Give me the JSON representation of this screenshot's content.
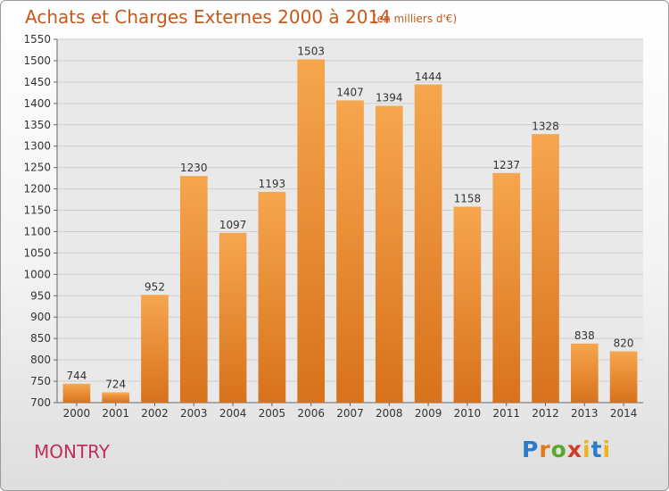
{
  "header": {
    "title": "Achats et Charges Externes 2000 à 2014",
    "unit": "(en milliers d'€)"
  },
  "footer": {
    "place": "MONTRY",
    "logo_letters": [
      "P",
      "r",
      "o",
      "x",
      "i",
      "t",
      "i"
    ]
  },
  "colors": {
    "bar_light": "#f6a64e",
    "bar_dark": "#d8721c",
    "title": "#c8581a",
    "place": "#c0305a"
  },
  "chart_data": {
    "type": "bar",
    "title": "Achats et Charges Externes 2000 à 2014",
    "subtitle": "(en milliers d'€)",
    "xlabel": "",
    "ylabel": "",
    "categories": [
      "2000",
      "2001",
      "2002",
      "2003",
      "2004",
      "2005",
      "2006",
      "2007",
      "2008",
      "2009",
      "2010",
      "2011",
      "2012",
      "2013",
      "2014"
    ],
    "values": [
      744,
      724,
      952,
      1230,
      1097,
      1193,
      1503,
      1407,
      1394,
      1444,
      1158,
      1237,
      1328,
      838,
      820
    ],
    "ylim": [
      700,
      1550
    ],
    "yticks": [
      700,
      750,
      800,
      850,
      900,
      950,
      1000,
      1050,
      1100,
      1150,
      1200,
      1250,
      1300,
      1350,
      1400,
      1450,
      1500,
      1550
    ],
    "grid": true,
    "data_labels": true
  }
}
